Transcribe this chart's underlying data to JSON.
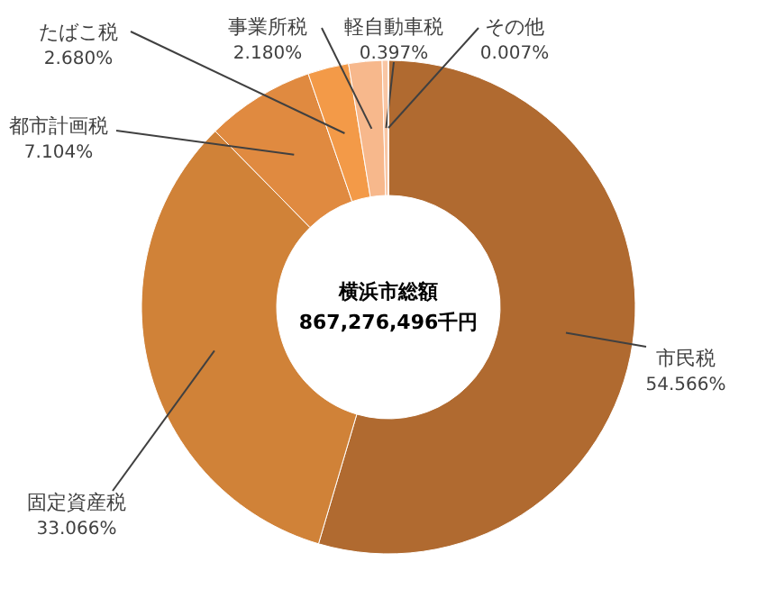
{
  "chart_data": {
    "type": "donut",
    "title": "横浜市総額",
    "subtitle": "867,276,496千円",
    "categories": [
      "市民税",
      "固定資産税",
      "都市計画税",
      "たばこ税",
      "事業所税",
      "軽自動車税",
      "その他"
    ],
    "values": [
      54.566,
      33.066,
      7.104,
      2.68,
      2.18,
      0.397,
      0.007
    ],
    "value_labels": [
      "54.566%",
      "33.066%",
      "7.104%",
      "2.680%",
      "2.180%",
      "0.397%",
      "0.007%"
    ],
    "colors": [
      "#b06a30",
      "#d08238",
      "#e08a40",
      "#f39a48",
      "#f7b88c",
      "#f9c6a4",
      "#fcd8bf"
    ]
  }
}
